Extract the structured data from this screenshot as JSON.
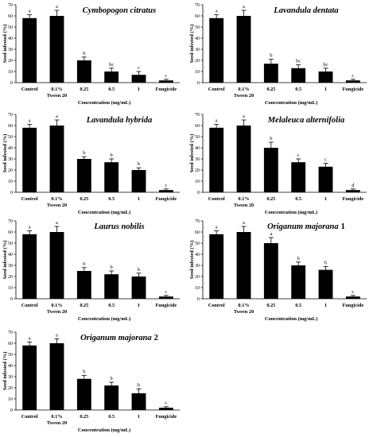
{
  "chart_data": [
    {
      "type": "bar",
      "title": "Cymbopogon citratus",
      "title_suffix": "",
      "ylabel": "Seed infested (%)",
      "xlabel": "Concentration (mg/mL)",
      "ylim": [
        0,
        70
      ],
      "yticks": [
        0,
        10,
        20,
        30,
        40,
        50,
        60,
        70
      ],
      "categories": [
        "Control",
        "0.1%",
        "0.25",
        "0.5",
        "1",
        "Fungicide"
      ],
      "category_sublabels": [
        "",
        "Tween 20",
        "",
        "",
        "",
        ""
      ],
      "values": [
        58,
        60,
        20,
        10,
        7,
        2
      ],
      "errors": [
        3,
        5,
        3,
        3,
        3,
        1
      ],
      "letters": [
        "a",
        "a",
        "b",
        "bc",
        "c",
        "c"
      ]
    },
    {
      "type": "bar",
      "title": "Lavandula dentata",
      "title_suffix": "",
      "ylabel": "Seed infested (%)",
      "xlabel": "Concentration (mg/mL)",
      "ylim": [
        0,
        70
      ],
      "yticks": [
        0,
        10,
        20,
        30,
        40,
        50,
        60,
        70
      ],
      "categories": [
        "Control",
        "0.1%",
        "0.25",
        "0.5",
        "1",
        "Fungicide"
      ],
      "category_sublabels": [
        "",
        "Tween 20",
        "",
        "",
        "",
        ""
      ],
      "values": [
        58,
        60,
        17,
        13,
        10,
        2
      ],
      "errors": [
        3,
        5,
        4,
        3,
        3,
        1
      ],
      "letters": [
        "a",
        "a",
        "b",
        "bc",
        "bc",
        "c"
      ]
    },
    {
      "type": "bar",
      "title": "Lavandula hybrida",
      "title_suffix": "",
      "ylabel": "Seed infested (%)",
      "xlabel": "Concentration (mg/mL)",
      "ylim": [
        0,
        70
      ],
      "yticks": [
        0,
        10,
        20,
        30,
        40,
        50,
        60,
        70
      ],
      "categories": [
        "Control",
        "0.1%",
        "0.25",
        "0.5",
        "1",
        "Fungicide"
      ],
      "category_sublabels": [
        "",
        "Tween 20",
        "",
        "",
        "",
        ""
      ],
      "values": [
        58,
        60,
        30,
        27,
        20,
        2
      ],
      "errors": [
        3,
        5,
        2,
        3,
        2,
        1
      ],
      "letters": [
        "a",
        "a",
        "b",
        "b",
        "b",
        "c"
      ]
    },
    {
      "type": "bar",
      "title": "Melaleuca alternifolia",
      "title_suffix": "",
      "ylabel": "Seed infested (%)",
      "xlabel": "Concentration (mg/mL)",
      "ylim": [
        0,
        70
      ],
      "yticks": [
        0,
        10,
        20,
        30,
        40,
        50,
        60,
        70
      ],
      "categories": [
        "Control",
        "0.1%",
        "0.25",
        "0.5",
        "1",
        "Fungicide"
      ],
      "category_sublabels": [
        "",
        "Tween 20",
        "",
        "",
        "",
        ""
      ],
      "values": [
        58,
        60,
        40,
        27,
        23,
        2
      ],
      "errors": [
        3,
        5,
        5,
        3,
        3,
        1
      ],
      "letters": [
        "a",
        "a",
        "b",
        "c",
        "c",
        "d"
      ]
    },
    {
      "type": "bar",
      "title": "Laurus nobilis",
      "title_suffix": "",
      "ylabel": "Seed infested (%)",
      "xlabel": "Concentration (mg/mL)",
      "ylim": [
        0,
        70
      ],
      "yticks": [
        0,
        10,
        20,
        30,
        40,
        50,
        60,
        70
      ],
      "categories": [
        "Control",
        "0.1%",
        "0.25",
        "0.5",
        "1",
        "Fungicide"
      ],
      "category_sublabels": [
        "",
        "Tween 20",
        "",
        "",
        "",
        ""
      ],
      "values": [
        58,
        60,
        25,
        22,
        20,
        2
      ],
      "errors": [
        3,
        5,
        3,
        3,
        3,
        1
      ],
      "letters": [
        "a",
        "a",
        "b",
        "b",
        "b",
        "c"
      ]
    },
    {
      "type": "bar",
      "title": "Origanum majorana",
      "title_suffix": "1",
      "ylabel": "Seed infested (%)",
      "xlabel": "Concentration (mg/mL)",
      "ylim": [
        0,
        70
      ],
      "yticks": [
        0,
        10,
        20,
        30,
        40,
        50,
        60,
        70
      ],
      "categories": [
        "Control",
        "0.1%",
        "0.25",
        "0.5",
        "1",
        "Fungicide"
      ],
      "category_sublabels": [
        "",
        "Tween 20",
        "",
        "",
        "",
        ""
      ],
      "values": [
        58,
        60,
        50,
        30,
        26,
        2
      ],
      "errors": [
        3,
        5,
        5,
        3,
        3,
        1
      ],
      "letters": [
        "a",
        "a",
        "a",
        "b",
        "b",
        "c"
      ]
    },
    {
      "type": "bar",
      "title": "Origanum majorana",
      "title_suffix": "2",
      "ylabel": "Seed infested (%)",
      "xlabel": "Concentration (mg/mL)",
      "ylim": [
        0,
        70
      ],
      "yticks": [
        0,
        10,
        20,
        30,
        40,
        50,
        60,
        70
      ],
      "categories": [
        "Control",
        "0.1%",
        "0.25",
        "0.5",
        "1",
        "Fungicide"
      ],
      "category_sublabels": [
        "",
        "Tween 20",
        "",
        "",
        "",
        ""
      ],
      "values": [
        58,
        60,
        28,
        22,
        15,
        2
      ],
      "errors": [
        3,
        4,
        3,
        3,
        4,
        1
      ],
      "letters": [
        "a",
        "a",
        "b",
        "b",
        "b",
        "c"
      ]
    }
  ]
}
